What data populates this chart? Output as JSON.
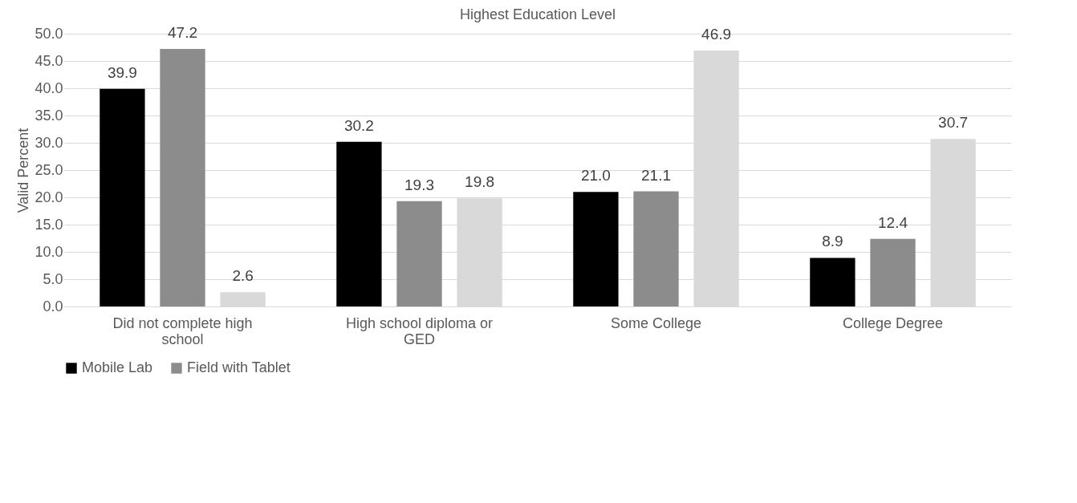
{
  "chart_data": {
    "type": "bar",
    "title": "Highest Education Level",
    "ylabel": "Valid Percent",
    "categories": [
      "Did not complete high school",
      "High school diploma or GED",
      "Some College",
      "College Degree"
    ],
    "series": [
      {
        "name": "Mobile Lab",
        "color": "#000000",
        "values": [
          39.9,
          30.2,
          21.0,
          8.9
        ],
        "value_labels": [
          "39.9",
          "30.2",
          "21.0",
          "8.9"
        ]
      },
      {
        "name": "Field with Tablet",
        "color": "#8c8c8c",
        "values": [
          47.2,
          19.3,
          21.1,
          12.4
        ],
        "value_labels": [
          "47.2",
          "19.3",
          "21.1",
          "12.4"
        ]
      },
      {
        "color": "#d9d9d9",
        "values": [
          2.6,
          19.8,
          46.9,
          30.7
        ],
        "value_labels": [
          "2.6",
          "19.8",
          "46.9",
          "30.7"
        ]
      }
    ],
    "ylim": [
      0,
      50
    ],
    "yticks": [
      {
        "value": 0,
        "label": "0.0"
      },
      {
        "value": 5,
        "label": "5.0"
      },
      {
        "value": 10,
        "label": "10.0"
      },
      {
        "value": 15,
        "label": "15.0"
      },
      {
        "value": 20,
        "label": "20.0"
      },
      {
        "value": 25,
        "label": "25.0"
      },
      {
        "value": 30,
        "label": "30.0"
      },
      {
        "value": 35,
        "label": "35.0"
      },
      {
        "value": 40,
        "label": "40.0"
      },
      {
        "value": 45,
        "label": "45.0"
      },
      {
        "value": 50,
        "label": "50.0"
      }
    ],
    "grid": "y",
    "legend": "bottom"
  }
}
